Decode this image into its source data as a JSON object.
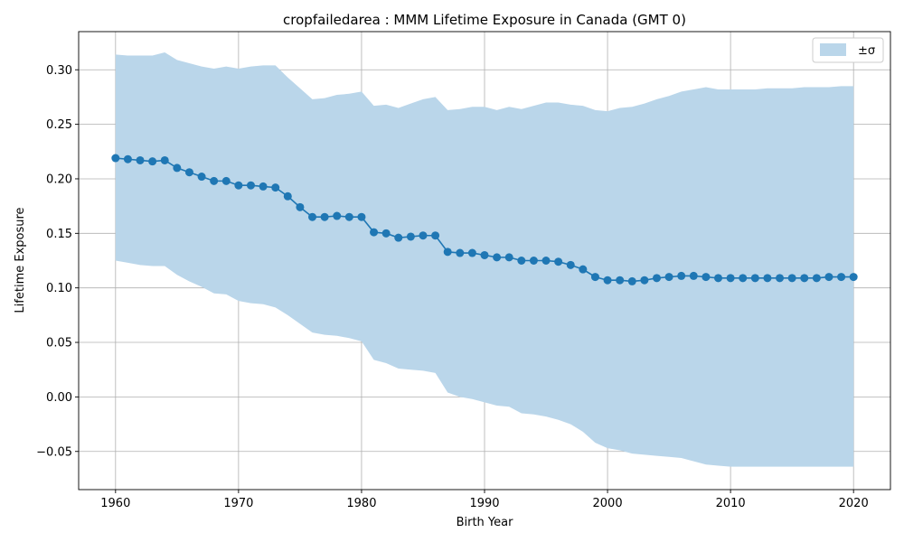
{
  "chart_data": {
    "type": "line",
    "title": "cropfailedarea : MMM Lifetime Exposure in Canada (GMT 0)",
    "xlabel": "Birth Year",
    "ylabel": "Lifetime Exposure",
    "xlim": [
      1957,
      2023
    ],
    "ylim": [
      -0.085,
      0.335
    ],
    "xticks": [
      1960,
      1970,
      1980,
      1990,
      2000,
      2010,
      2020
    ],
    "yticks": [
      -0.05,
      0.0,
      0.05,
      0.1,
      0.15,
      0.2,
      0.25,
      0.3
    ],
    "ytick_labels": [
      "−0.05",
      "0.00",
      "0.05",
      "0.10",
      "0.15",
      "0.20",
      "0.25",
      "0.30"
    ],
    "grid": true,
    "legend": {
      "placement": "top-right",
      "entries": [
        {
          "label": "±σ",
          "color": "#bad6ea"
        }
      ]
    },
    "colors": {
      "line": "#1f77b4",
      "band": "#bad6ea",
      "grid": "#b0b0b0"
    },
    "x": [
      1960,
      1961,
      1962,
      1963,
      1964,
      1965,
      1966,
      1967,
      1968,
      1969,
      1970,
      1971,
      1972,
      1973,
      1974,
      1975,
      1976,
      1977,
      1978,
      1979,
      1980,
      1981,
      1982,
      1983,
      1984,
      1985,
      1986,
      1987,
      1988,
      1989,
      1990,
      1991,
      1992,
      1993,
      1994,
      1995,
      1996,
      1997,
      1998,
      1999,
      2000,
      2001,
      2002,
      2003,
      2004,
      2005,
      2006,
      2007,
      2008,
      2009,
      2010,
      2011,
      2012,
      2013,
      2014,
      2015,
      2016,
      2017,
      2018,
      2019,
      2020
    ],
    "series": [
      {
        "values": [
          0.219,
          0.218,
          0.217,
          0.216,
          0.217,
          0.21,
          0.206,
          0.202,
          0.198,
          0.198,
          0.194,
          0.194,
          0.193,
          0.192,
          0.184,
          0.174,
          0.165,
          0.165,
          0.166,
          0.165,
          0.165,
          0.151,
          0.15,
          0.146,
          0.147,
          0.148,
          0.148,
          0.133,
          0.132,
          0.132,
          0.13,
          0.128,
          0.128,
          0.125,
          0.125,
          0.125,
          0.124,
          0.121,
          0.117,
          0.11,
          0.107,
          0.107,
          0.106,
          0.107,
          0.109,
          0.11,
          0.111,
          0.111,
          0.11,
          0.109,
          0.109,
          0.109,
          0.109,
          0.109,
          0.109,
          0.109,
          0.109,
          0.109,
          0.11,
          0.11,
          0.11
        ],
        "upper": [
          0.314,
          0.313,
          0.313,
          0.313,
          0.316,
          0.309,
          0.306,
          0.303,
          0.301,
          0.303,
          0.301,
          0.303,
          0.304,
          0.304,
          0.293,
          0.283,
          0.273,
          0.274,
          0.277,
          0.278,
          0.28,
          0.267,
          0.268,
          0.265,
          0.269,
          0.273,
          0.275,
          0.263,
          0.264,
          0.266,
          0.266,
          0.263,
          0.266,
          0.264,
          0.267,
          0.27,
          0.27,
          0.268,
          0.267,
          0.263,
          0.262,
          0.265,
          0.266,
          0.269,
          0.273,
          0.276,
          0.28,
          0.282,
          0.284,
          0.282,
          0.282,
          0.282,
          0.282,
          0.283,
          0.283,
          0.283,
          0.284,
          0.284,
          0.284,
          0.285,
          0.285
        ],
        "lower": [
          0.125,
          0.123,
          0.121,
          0.12,
          0.12,
          0.112,
          0.106,
          0.101,
          0.095,
          0.094,
          0.088,
          0.086,
          0.085,
          0.082,
          0.075,
          0.067,
          0.059,
          0.057,
          0.056,
          0.054,
          0.051,
          0.034,
          0.031,
          0.026,
          0.025,
          0.024,
          0.022,
          0.004,
          0.0,
          -0.002,
          -0.005,
          -0.008,
          -0.009,
          -0.015,
          -0.016,
          -0.018,
          -0.021,
          -0.025,
          -0.032,
          -0.042,
          -0.047,
          -0.049,
          -0.052,
          -0.053,
          -0.054,
          -0.055,
          -0.056,
          -0.059,
          -0.062,
          -0.063,
          -0.064,
          -0.064,
          -0.064,
          -0.064,
          -0.064,
          -0.064,
          -0.064,
          -0.064,
          -0.064,
          -0.064,
          -0.064
        ]
      }
    ]
  }
}
